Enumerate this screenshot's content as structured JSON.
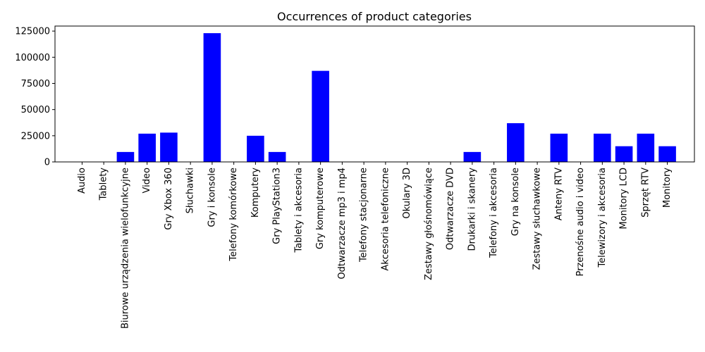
{
  "chart_data": {
    "type": "bar",
    "title": "Occurrences of product categories",
    "xlabel": "",
    "ylabel": "",
    "categories": [
      "Audio",
      "Tablety",
      "Biurowe urządzenia wielofunkcyjne",
      "Video",
      "Gry Xbox 360",
      "Słuchawki",
      "Gry i konsole",
      "Telefony komórkowe",
      "Komputery",
      "Gry PlayStation3",
      "Tablety i akcesoria",
      "Gry komputerowe",
      "Odtwarzacze mp3 i mp4",
      "Telefony stacjonarne",
      "Akcesoria telefoniczne",
      "Okulary 3D",
      "Zestawy głośnomówiące",
      "Odtwarzacze DVD",
      "Drukarki i skanery",
      "Telefony i akcesoria",
      "Gry na konsole",
      "Zestawy słuchawkowe",
      "Anteny RTV",
      "Przenośne audio i video",
      "Telewizory i akcesoria",
      "Monitory LCD",
      "Sprzęt RTV",
      "Monitory"
    ],
    "values": [
      0,
      0,
      9500,
      27000,
      28000,
      0,
      123000,
      0,
      25000,
      9500,
      0,
      87000,
      0,
      0,
      0,
      0,
      0,
      0,
      9500,
      0,
      37000,
      0,
      27000,
      0,
      27000,
      15000,
      27000,
      15000
    ],
    "ylim": [
      0,
      130000
    ],
    "yticks": [
      0,
      25000,
      50000,
      75000,
      100000,
      125000
    ],
    "grid": false,
    "legend": "none",
    "colors": {
      "bar": "#0000ff",
      "axis": "#000000",
      "background": "#ffffff"
    }
  }
}
